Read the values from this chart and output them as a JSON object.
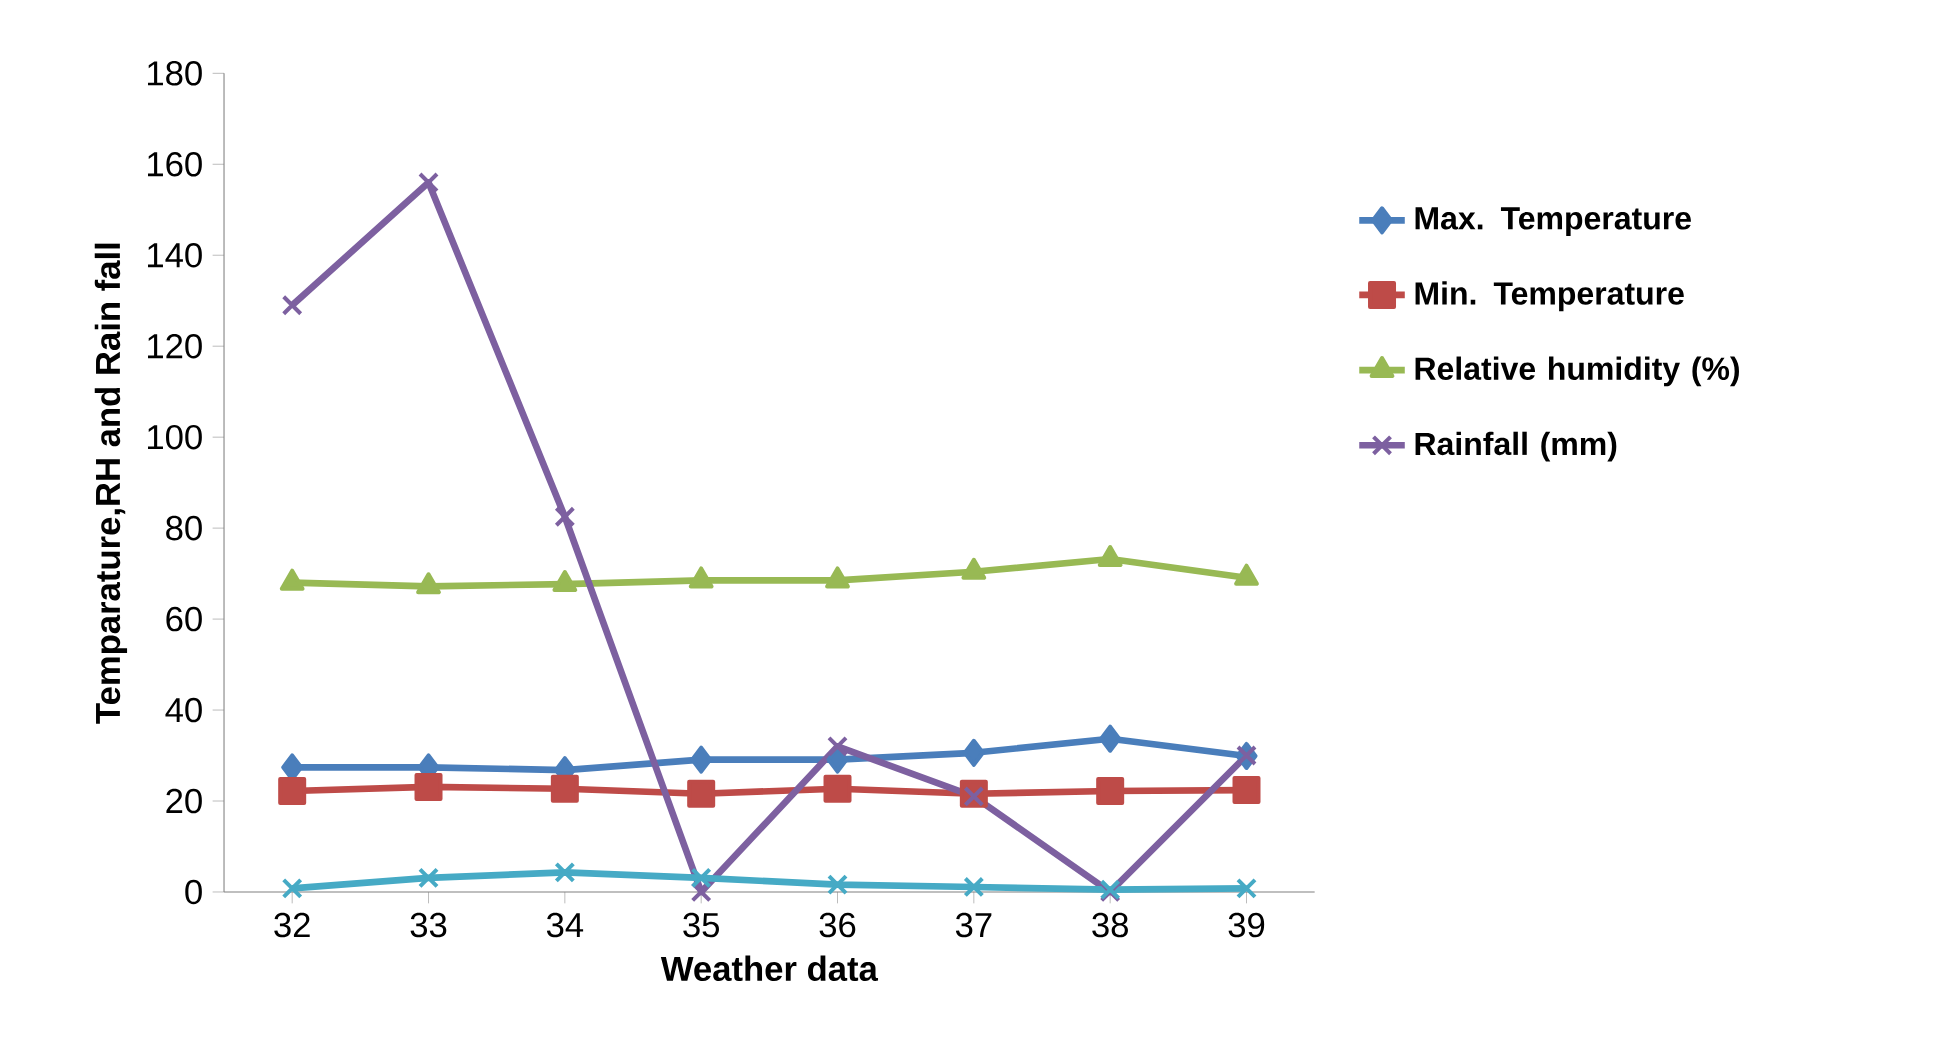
{
  "chart_data": {
    "type": "line",
    "xlabel": "Weather data",
    "ylabel": "Temparature,RH and Rain fall",
    "categories": [
      "32",
      "33",
      "34",
      "35",
      "36",
      "37",
      "38",
      "39"
    ],
    "series": [
      {
        "name": "Max. Temperature",
        "color": "#4a7ebb",
        "marker": "diamond",
        "values": [
          27.4,
          27.4,
          26.8,
          29.1,
          29.1,
          30.6,
          33.7,
          29.9
        ]
      },
      {
        "name": "Min. Temperature",
        "color": "#be4b48",
        "marker": "square",
        "values": [
          22.2,
          23.1,
          22.7,
          21.6,
          22.7,
          21.6,
          22.2,
          22.4
        ]
      },
      {
        "name": "Relative humidity (%)",
        "color": "#98b954",
        "marker": "triangle",
        "values": [
          68,
          67.2,
          67.7,
          68.5,
          68.5,
          70.4,
          73.2,
          69.1
        ]
      },
      {
        "name": "Rainfall (mm)",
        "color": "#7d60a0",
        "marker": "cross",
        "values": [
          129,
          156,
          82.5,
          0,
          32,
          21,
          0,
          30
        ]
      },
      {
        "color": "#46aac5",
        "marker": "cross",
        "values": [
          0.8,
          3.1,
          4.3,
          3.1,
          1.6,
          1.1,
          0.5,
          0.8
        ]
      }
    ],
    "ylim": [
      0,
      180
    ],
    "yticks": [
      0,
      20,
      40,
      60,
      80,
      100,
      120,
      140,
      160,
      180
    ],
    "legend": "right",
    "grid": false
  }
}
